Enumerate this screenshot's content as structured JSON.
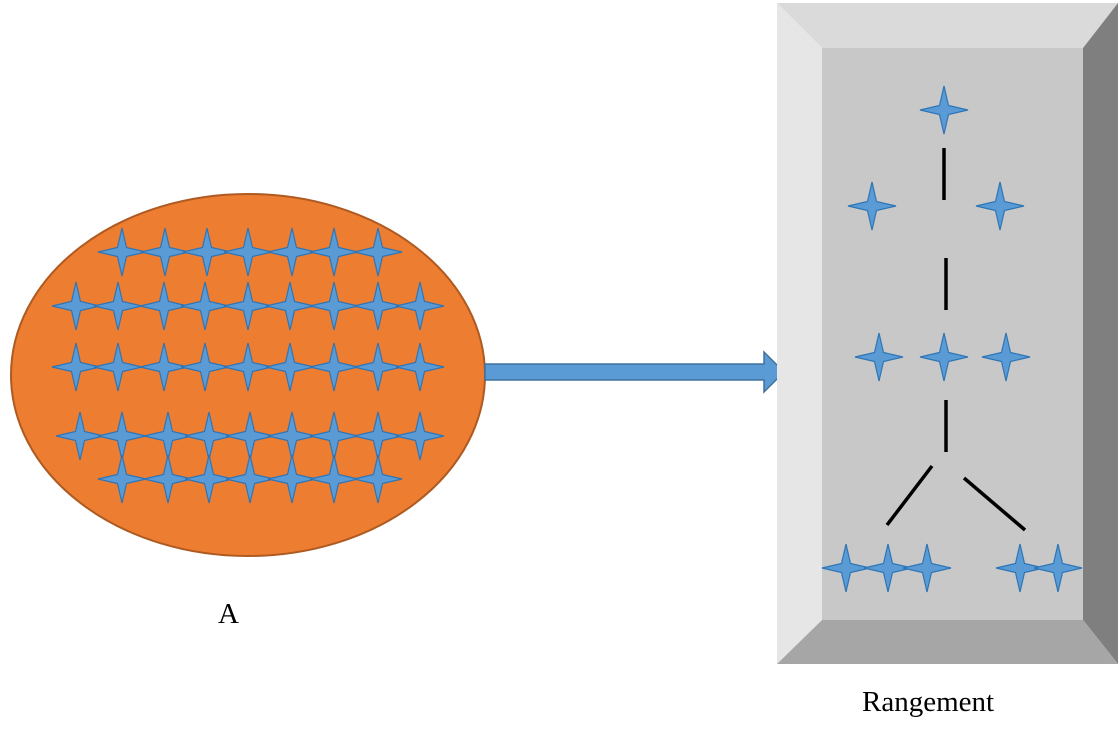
{
  "labels": {
    "source": "A",
    "box": "Rangement"
  },
  "colors": {
    "ellipse_fill": "#ED7D31",
    "ellipse_stroke": "#AE5A21",
    "star_fill": "#5B9BD5",
    "star_stroke": "#2E75B6",
    "arrow_fill": "#5B9BD5",
    "arrow_stroke": "#41719C",
    "box_face": "#C8C8C8",
    "box_top": "#DADADA",
    "box_left": "#E6E6E6",
    "box_right": "#7F7F7F",
    "box_bottom": "#A6A6A6",
    "line": "#000000"
  },
  "icons": {
    "star": "four-point-star-icon",
    "arrow": "right-arrow-icon"
  }
}
